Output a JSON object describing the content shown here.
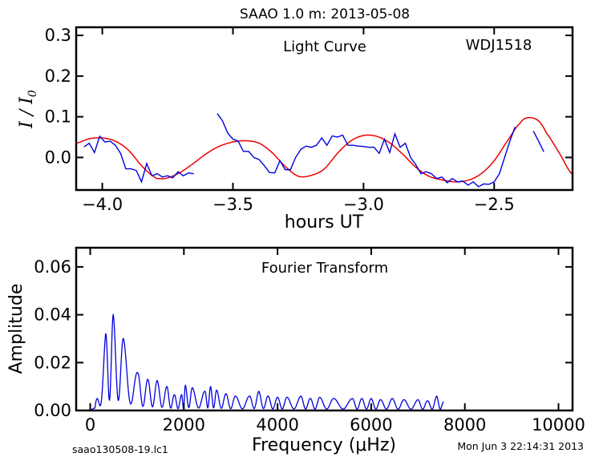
{
  "figure_title": "SAAO 1.0 m:  2013-05-08",
  "footer": {
    "left": "saao130508-19.lc1",
    "right": "Mon Jun  3 22:14:31 2013"
  },
  "colors": {
    "data": "#0000dd",
    "model": "#ee0000",
    "axes": "#000000"
  },
  "chart_data": [
    {
      "type": "line",
      "annotation": "Light Curve",
      "target": "WDJ1518",
      "xlabel": "hours UT",
      "ylabel": "I / I",
      "ylabel_sub": "0",
      "xlim": [
        -4.1,
        -2.2
      ],
      "ylim": [
        -0.08,
        0.32
      ],
      "xticks": [
        -4.0,
        -3.5,
        -3.0,
        -2.5
      ],
      "xtick_labels": [
        "−4.0",
        "−3.5",
        "−3.0",
        "−2.5"
      ],
      "yticks": [
        0.0,
        0.1,
        0.2,
        0.3
      ],
      "ytick_labels": [
        "0.0",
        "0.1",
        "0.2",
        "0.3"
      ],
      "series": [
        {
          "role": "data",
          "segments": [
            [
              [
                -4.07,
                0.026
              ],
              [
                -4.05,
                0.035
              ],
              [
                -4.03,
                0.012
              ],
              [
                -4.01,
                0.052
              ],
              [
                -3.99,
                0.038
              ],
              [
                -3.97,
                0.04
              ],
              [
                -3.95,
                0.03
              ],
              [
                -3.93,
                0.01
              ],
              [
                -3.91,
                -0.028
              ],
              [
                -3.89,
                -0.028
              ],
              [
                -3.87,
                -0.032
              ],
              [
                -3.85,
                -0.06
              ],
              [
                -3.83,
                -0.015
              ],
              [
                -3.81,
                -0.045
              ],
              [
                -3.79,
                -0.04
              ],
              [
                -3.77,
                -0.048
              ],
              [
                -3.75,
                -0.045
              ],
              [
                -3.73,
                -0.05
              ],
              [
                -3.71,
                -0.035
              ],
              [
                -3.69,
                -0.045
              ],
              [
                -3.67,
                -0.038
              ],
              [
                -3.65,
                -0.04
              ]
            ],
            [
              [
                -3.56,
                0.108
              ],
              [
                -3.54,
                0.09
              ],
              [
                -3.52,
                0.06
              ],
              [
                -3.5,
                0.045
              ],
              [
                -3.48,
                0.04
              ],
              [
                -3.46,
                0.015
              ],
              [
                -3.44,
                0.015
              ],
              [
                -3.42,
                0.0
              ],
              [
                -3.4,
                -0.005
              ],
              [
                -3.38,
                -0.02
              ],
              [
                -3.36,
                -0.037
              ],
              [
                -3.34,
                -0.038
              ],
              [
                -3.32,
                -0.008
              ],
              [
                -3.3,
                -0.03
              ],
              [
                -3.28,
                -0.03
              ],
              [
                -3.26,
                0.0
              ],
              [
                -3.24,
                0.02
              ],
              [
                -3.22,
                0.028
              ],
              [
                -3.2,
                0.025
              ],
              [
                -3.18,
                0.03
              ],
              [
                -3.16,
                0.048
              ],
              [
                -3.14,
                0.03
              ],
              [
                -3.12,
                0.053
              ],
              [
                -3.1,
                0.05
              ],
              [
                -3.08,
                0.055
              ],
              [
                -3.06,
                0.03
              ],
              [
                -3.04,
                0.03
              ],
              [
                -3.02,
                0.028
              ],
              [
                -3.0,
                0.027
              ],
              [
                -2.98,
                0.025
              ],
              [
                -2.96,
                0.025
              ],
              [
                -2.94,
                0.01
              ],
              [
                -2.92,
                0.045
              ],
              [
                -2.9,
                0.012
              ],
              [
                -2.88,
                0.058
              ],
              [
                -2.86,
                0.025
              ],
              [
                -2.84,
                0.035
              ],
              [
                -2.82,
                0.0
              ],
              [
                -2.8,
                -0.018
              ],
              [
                -2.78,
                -0.04
              ],
              [
                -2.76,
                -0.035
              ],
              [
                -2.74,
                -0.04
              ],
              [
                -2.72,
                -0.052
              ],
              [
                -2.7,
                -0.048
              ],
              [
                -2.68,
                -0.062
              ],
              [
                -2.66,
                -0.052
              ],
              [
                -2.64,
                -0.06
              ],
              [
                -2.62,
                -0.058
              ],
              [
                -2.6,
                -0.068
              ],
              [
                -2.58,
                -0.06
              ],
              [
                -2.56,
                -0.072
              ],
              [
                -2.54,
                -0.065
              ],
              [
                -2.52,
                -0.066
              ],
              [
                -2.5,
                -0.06
              ],
              [
                -2.48,
                -0.04
              ],
              [
                -2.46,
                0.0
              ],
              [
                -2.44,
                0.04
              ],
              [
                -2.42,
                0.075
              ]
            ],
            [
              [
                -2.35,
                0.065
              ],
              [
                -2.33,
                0.04
              ],
              [
                -2.31,
                0.014
              ]
            ]
          ]
        },
        {
          "role": "model",
          "x_start": -4.1,
          "x_end": -2.2,
          "curve": [
            [
              -4.1,
              0.035
            ],
            [
              -4.05,
              0.046
            ],
            [
              -4.0,
              0.048
            ],
            [
              -3.95,
              0.04
            ],
            [
              -3.9,
              0.018
            ],
            [
              -3.85,
              -0.02
            ],
            [
              -3.8,
              -0.048
            ],
            [
              -3.78,
              -0.052
            ],
            [
              -3.75,
              -0.05
            ],
            [
              -3.7,
              -0.036
            ],
            [
              -3.65,
              -0.014
            ],
            [
              -3.6,
              0.01
            ],
            [
              -3.55,
              0.028
            ],
            [
              -3.5,
              0.038
            ],
            [
              -3.45,
              0.041
            ],
            [
              -3.4,
              0.035
            ],
            [
              -3.35,
              0.012
            ],
            [
              -3.3,
              -0.022
            ],
            [
              -3.25,
              -0.046
            ],
            [
              -3.2,
              -0.044
            ],
            [
              -3.15,
              -0.028
            ],
            [
              -3.1,
              0.01
            ],
            [
              -3.05,
              0.04
            ],
            [
              -3.0,
              0.054
            ],
            [
              -2.95,
              0.052
            ],
            [
              -2.9,
              0.036
            ],
            [
              -2.85,
              0.008
            ],
            [
              -2.8,
              -0.024
            ],
            [
              -2.75,
              -0.046
            ],
            [
              -2.7,
              -0.055
            ],
            [
              -2.65,
              -0.06
            ],
            [
              -2.6,
              -0.056
            ],
            [
              -2.55,
              -0.04
            ],
            [
              -2.5,
              -0.008
            ],
            [
              -2.45,
              0.04
            ],
            [
              -2.4,
              0.085
            ],
            [
              -2.37,
              0.098
            ],
            [
              -2.33,
              0.09
            ],
            [
              -2.3,
              0.06
            ],
            [
              -2.25,
              0.01
            ],
            [
              -2.2,
              -0.042
            ]
          ]
        }
      ]
    },
    {
      "type": "line",
      "annotation": "Fourier Transform",
      "xlabel": "Frequency (μHz)",
      "ylabel": "Amplitude",
      "xlim": [
        -300,
        10300
      ],
      "ylim": [
        0,
        0.068
      ],
      "xticks": [
        0,
        2000,
        4000,
        6000,
        8000,
        10000
      ],
      "xtick_labels": [
        "0",
        "2000",
        "4000",
        "6000",
        "8000",
        "10000"
      ],
      "yticks": [
        0.0,
        0.02,
        0.04,
        0.06
      ],
      "ytick_labels": [
        "0.00",
        "0.02",
        "0.04",
        "0.06"
      ],
      "x_start": 0,
      "x_end": 7550,
      "peaks": [
        [
          100,
          0.001
        ],
        [
          330,
          0.032
        ],
        [
          490,
          0.04
        ],
        [
          710,
          0.03
        ],
        [
          1020,
          0.0155
        ],
        [
          1230,
          0.013
        ],
        [
          1430,
          0.0125
        ],
        [
          1640,
          0.01
        ],
        [
          1800,
          0.0065
        ],
        [
          1950,
          0.0065
        ],
        [
          2030,
          0.0105
        ],
        [
          2180,
          0.0095
        ],
        [
          2450,
          0.008
        ],
        [
          2570,
          0.01
        ],
        [
          2700,
          0.0085
        ],
        [
          2900,
          0.007
        ],
        [
          3100,
          0.006
        ],
        [
          3400,
          0.006
        ],
        [
          3600,
          0.008
        ],
        [
          3800,
          0.006
        ],
        [
          4000,
          0.0055
        ],
        [
          4200,
          0.0055
        ],
        [
          4500,
          0.006
        ],
        [
          4700,
          0.005
        ],
        [
          4900,
          0.0055
        ],
        [
          5200,
          0.005
        ],
        [
          5600,
          0.005
        ],
        [
          5800,
          0.005
        ],
        [
          6000,
          0.005
        ],
        [
          6200,
          0.0045
        ],
        [
          6450,
          0.005
        ],
        [
          6700,
          0.0045
        ],
        [
          7000,
          0.0045
        ],
        [
          7200,
          0.004
        ],
        [
          7400,
          0.006
        ],
        [
          7550,
          0.0035
        ]
      ]
    }
  ]
}
